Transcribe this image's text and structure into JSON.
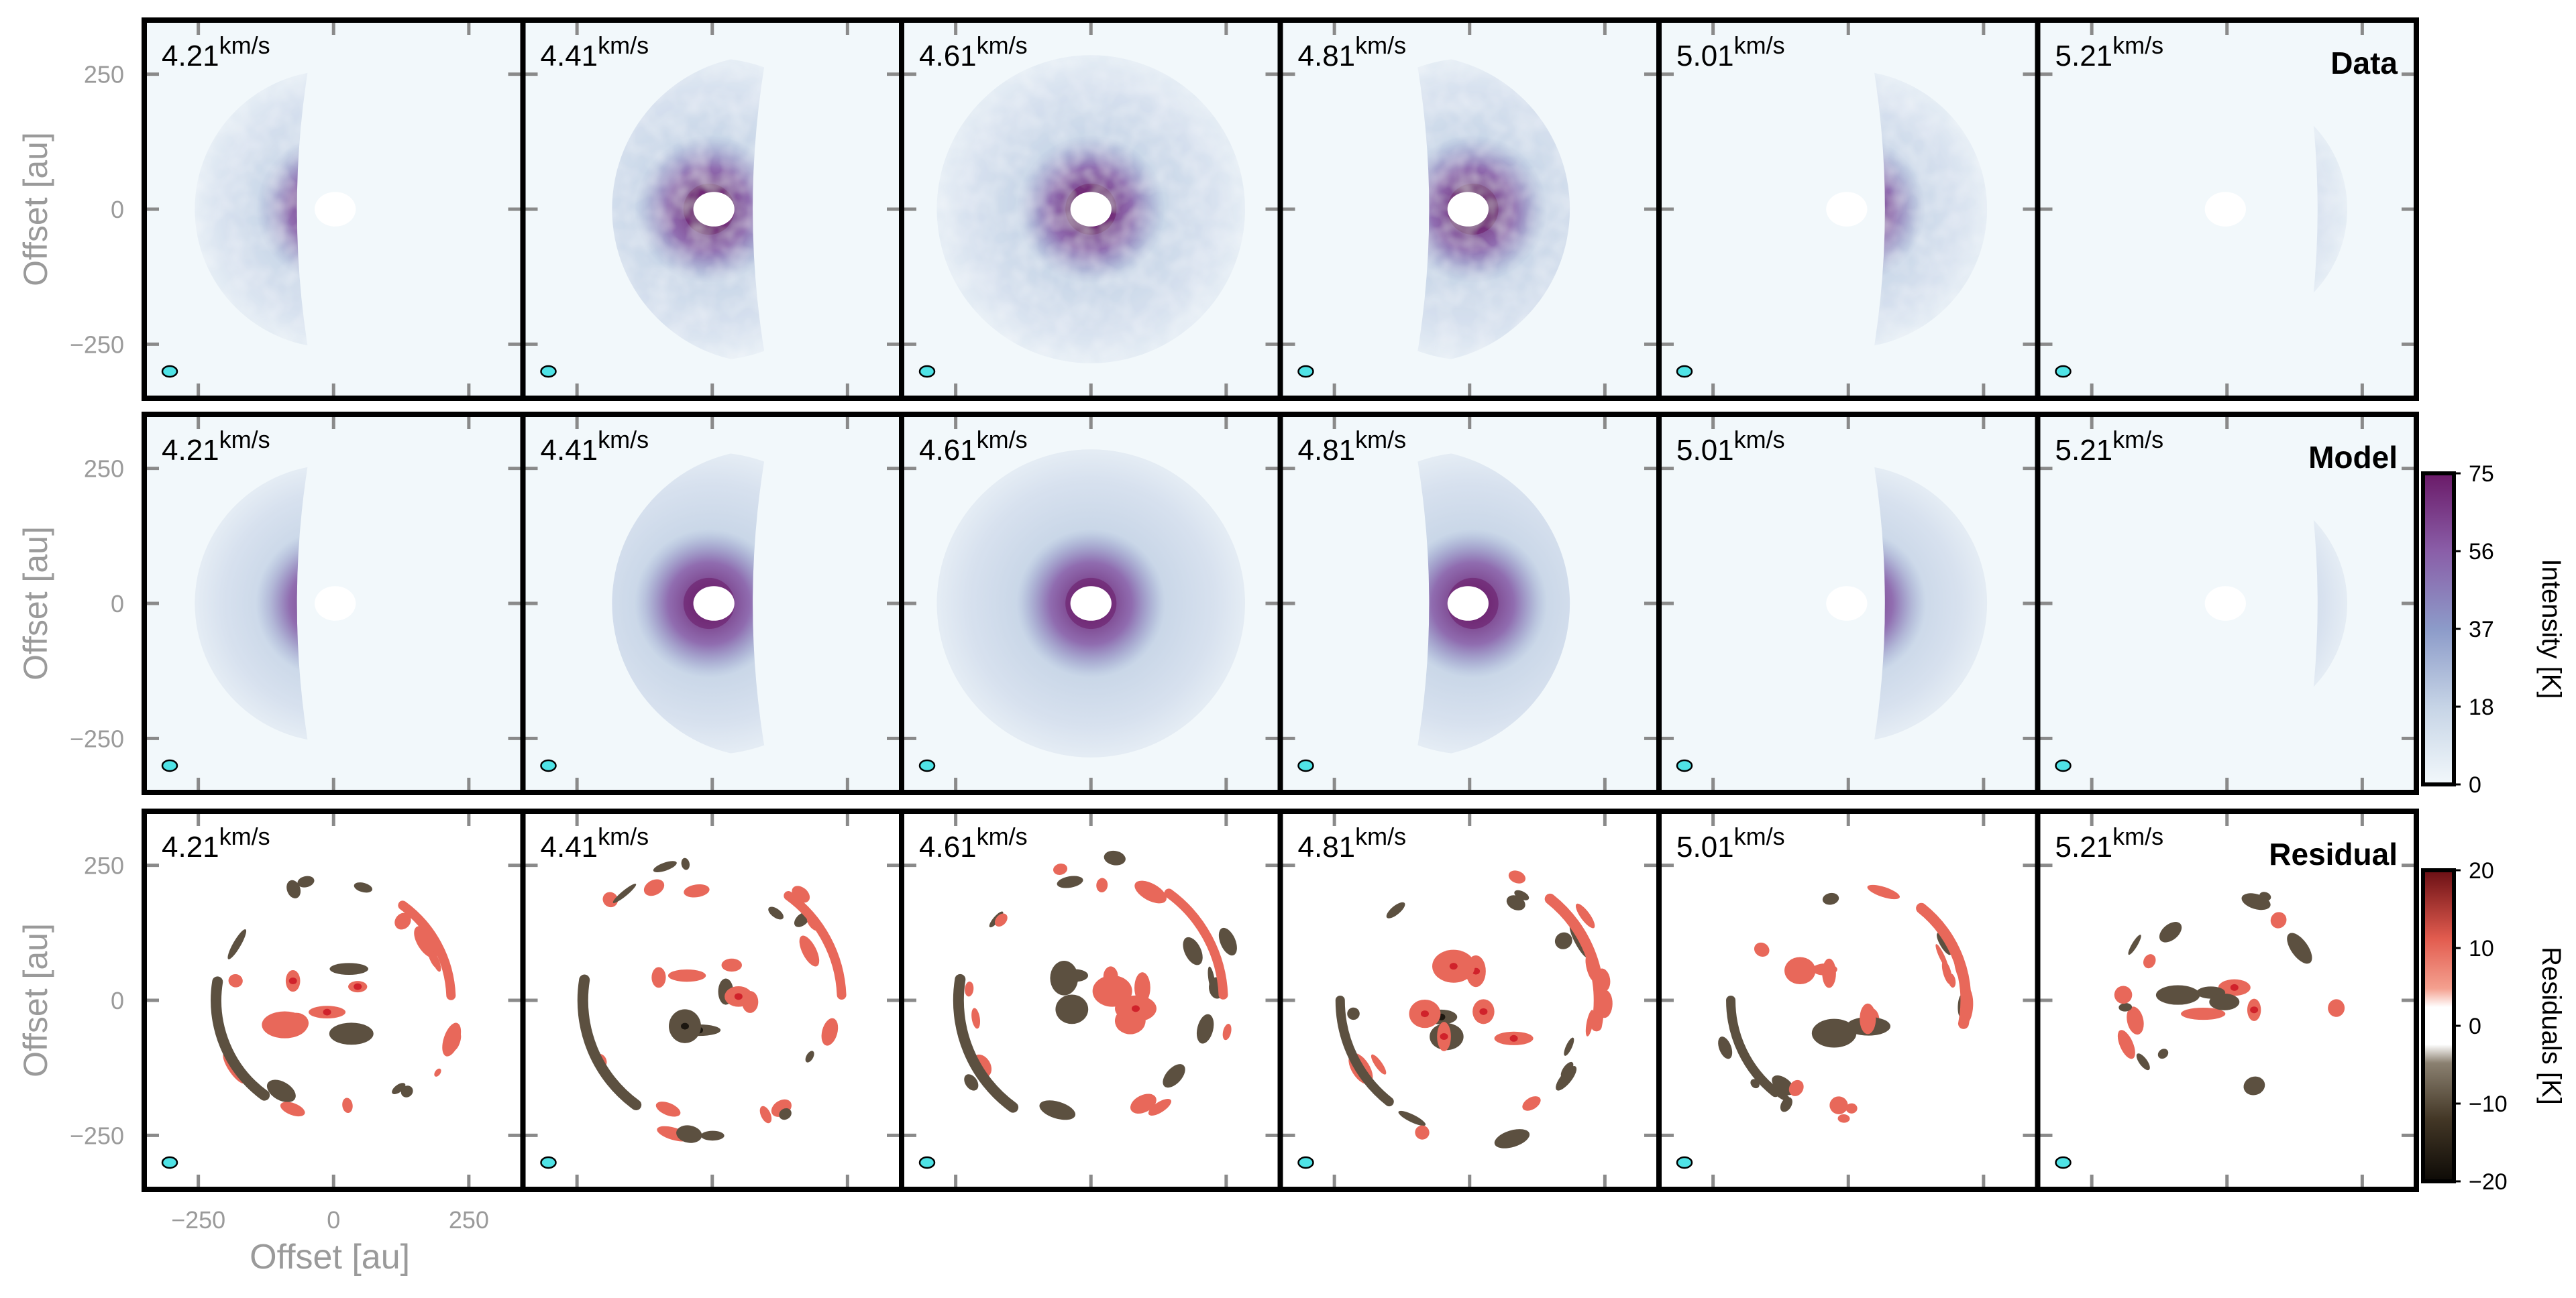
{
  "chart_data": {
    "type": "heatmap",
    "description_of_layout": "grid",
    "rows": [
      {
        "label": "Data",
        "colorbar": null
      },
      {
        "label": "Model",
        "colorbar": "intensity"
      },
      {
        "label": "Residual",
        "colorbar": "residuals"
      }
    ],
    "channels": [
      {
        "velocity": "4.21",
        "unit": "km/s",
        "side": "left",
        "strength": 0.75,
        "cutoff": -0.15
      },
      {
        "velocity": "4.41",
        "unit": "km/s",
        "side": "left",
        "strength": 0.95,
        "cutoff": 0.35
      },
      {
        "velocity": "4.61",
        "unit": "km/s",
        "side": "both",
        "strength": 1.0,
        "cutoff": 1.2
      },
      {
        "velocity": "4.81",
        "unit": "km/s",
        "side": "right",
        "strength": 0.95,
        "cutoff": 0.35
      },
      {
        "velocity": "5.01",
        "unit": "km/s",
        "side": "right",
        "strength": 0.75,
        "cutoff": -0.15
      },
      {
        "velocity": "5.21",
        "unit": "km/s",
        "side": "right",
        "strength": 0.45,
        "cutoff": -0.5
      }
    ],
    "xlabel": "Offset [au]",
    "ylabel": "Offset [au]",
    "xticks": [
      -250,
      0,
      250
    ],
    "yticks": [
      250,
      0,
      -250
    ],
    "xlim": [
      -350,
      350
    ],
    "ylim": [
      -350,
      350
    ],
    "colorbars": {
      "intensity": {
        "label": "Intensity [K]",
        "ticks": [
          "75",
          "56",
          "37",
          "18",
          "0"
        ],
        "range": [
          0,
          75
        ],
        "colors": [
          "#f2f8fb",
          "#c6d4e6",
          "#8c9bc9",
          "#8a5ea8",
          "#6a1a68"
        ]
      },
      "residuals": {
        "label": "Residuals [K]",
        "ticks": [
          "20",
          "10",
          "0",
          "-10",
          "-20"
        ],
        "range": [
          -20,
          20
        ],
        "colors": [
          "#6a0f14",
          "#e25c4f",
          "#f4a08f",
          "#ffffff",
          "#8a8070",
          "#433726",
          "#0d0a06"
        ]
      }
    },
    "beam_color": "#4fe3e6",
    "residual_colors": {
      "positive": "#e8685a",
      "positive_peak": "#d0222b",
      "negative": "#5c5040",
      "negative_peak": "#1c1710"
    }
  }
}
